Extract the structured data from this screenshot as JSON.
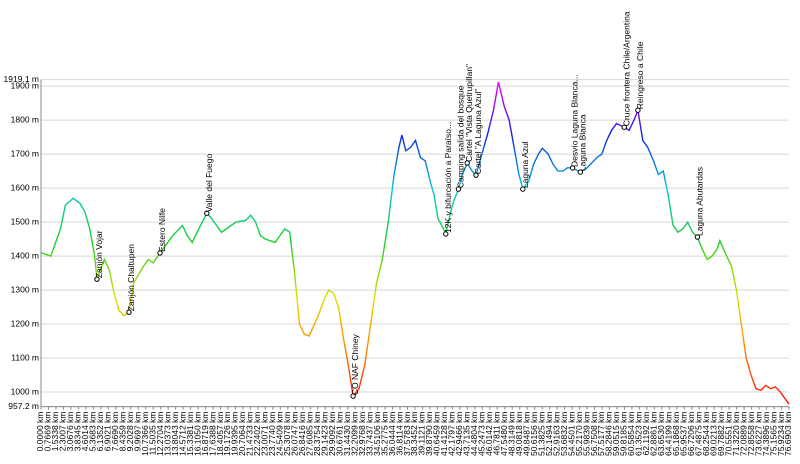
{
  "chart_data": {
    "type": "line",
    "ylim": [
      957.2,
      1919.1
    ],
    "yticks": [
      {
        "value": 957.2,
        "label": "957.2 m"
      },
      {
        "value": 1000,
        "label": "1000 m"
      },
      {
        "value": 1100,
        "label": "1100 m"
      },
      {
        "value": 1200,
        "label": "1200 m"
      },
      {
        "value": 1300,
        "label": "1300 m"
      },
      {
        "value": 1400,
        "label": "1400 m"
      },
      {
        "value": 1500,
        "label": "1500 m"
      },
      {
        "value": 1600,
        "label": "1600 m"
      },
      {
        "value": 1700,
        "label": "1700 m"
      },
      {
        "value": 1800,
        "label": "1800 m"
      },
      {
        "value": 1900,
        "label": "1900 m"
      },
      {
        "value": 1919.1,
        "label": "1919.1 m"
      }
    ],
    "xlim": [
      0,
      76.6903
    ],
    "xticks": [
      {
        "value": 0,
        "label": "0.0000 km"
      },
      {
        "value": 0.7669,
        "label": "0.7669 km"
      },
      {
        "value": 1.5338,
        "label": "1.5338 km"
      },
      {
        "value": 2.3007,
        "label": "2.3007 km"
      },
      {
        "value": 3.0676,
        "label": "3.0676 km"
      },
      {
        "value": 3.8345,
        "label": "3.8345 km"
      },
      {
        "value": 4.6014,
        "label": "4.6014 km"
      },
      {
        "value": 5.3683,
        "label": "5.3683 km"
      },
      {
        "value": 6.1352,
        "label": "6.1352 km"
      },
      {
        "value": 6.9021,
        "label": "6.9021 km"
      },
      {
        "value": 7.669,
        "label": "7.6690 km"
      },
      {
        "value": 8.4359,
        "label": "8.4359 km"
      },
      {
        "value": 9.2028,
        "label": "9.2028 km"
      },
      {
        "value": 9.9697,
        "label": "9.9697 km"
      },
      {
        "value": 10.7366,
        "label": "10.7366 km"
      },
      {
        "value": 11.5035,
        "label": "11.5035 km"
      },
      {
        "value": 12.2704,
        "label": "12.2704 km"
      },
      {
        "value": 13.0373,
        "label": "13.0373 km"
      },
      {
        "value": 13.8043,
        "label": "13.8043 km"
      },
      {
        "value": 14.5712,
        "label": "14.5712 km"
      },
      {
        "value": 15.3381,
        "label": "15.3381 km"
      },
      {
        "value": 16.105,
        "label": "16.1050 km"
      },
      {
        "value": 16.8719,
        "label": "16.8719 km"
      },
      {
        "value": 17.6388,
        "label": "17.6388 km"
      },
      {
        "value": 18.4057,
        "label": "18.4057 km"
      },
      {
        "value": 19.1726,
        "label": "19.1726 km"
      },
      {
        "value": 19.9395,
        "label": "19.9395 km"
      },
      {
        "value": 20.7064,
        "label": "20.7064 km"
      },
      {
        "value": 21.4733,
        "label": "21.4733 km"
      },
      {
        "value": 22.2402,
        "label": "22.2402 km"
      },
      {
        "value": 23.0071,
        "label": "23.0071 km"
      },
      {
        "value": 23.774,
        "label": "23.7740 km"
      },
      {
        "value": 24.5409,
        "label": "24.5409 km"
      },
      {
        "value": 25.3078,
        "label": "25.3078 km"
      },
      {
        "value": 26.0747,
        "label": "26.0747 km"
      },
      {
        "value": 26.8416,
        "label": "26.8416 km"
      },
      {
        "value": 27.6085,
        "label": "27.6085 km"
      },
      {
        "value": 28.3754,
        "label": "28.3754 km"
      },
      {
        "value": 29.1423,
        "label": "29.1423 km"
      },
      {
        "value": 29.9092,
        "label": "29.9092 km"
      },
      {
        "value": 30.6761,
        "label": "30.6761 km"
      },
      {
        "value": 31.443,
        "label": "31.4430 km"
      },
      {
        "value": 32.2099,
        "label": "32.2099 km"
      },
      {
        "value": 32.9768,
        "label": "32.9768 km"
      },
      {
        "value": 33.7437,
        "label": "33.7437 km"
      },
      {
        "value": 34.5106,
        "label": "34.5106 km"
      },
      {
        "value": 35.2775,
        "label": "35.2775 km"
      },
      {
        "value": 36.0444,
        "label": "36.0444 km"
      },
      {
        "value": 36.8114,
        "label": "36.8114 km"
      },
      {
        "value": 37.5783,
        "label": "37.5783 km"
      },
      {
        "value": 38.3452,
        "label": "38.3452 km"
      },
      {
        "value": 39.1121,
        "label": "39.1121 km"
      },
      {
        "value": 39.879,
        "label": "39.8790 km"
      },
      {
        "value": 40.6459,
        "label": "40.6459 km"
      },
      {
        "value": 41.4128,
        "label": "41.4128 km"
      },
      {
        "value": 42.1797,
        "label": "42.1797 km"
      },
      {
        "value": 42.9466,
        "label": "42.9466 km"
      },
      {
        "value": 43.7135,
        "label": "43.7135 km"
      },
      {
        "value": 44.4804,
        "label": "44.4804 km"
      },
      {
        "value": 45.2473,
        "label": "45.2473 km"
      },
      {
        "value": 46.0142,
        "label": "46.0142 km"
      },
      {
        "value": 46.7811,
        "label": "46.7811 km"
      },
      {
        "value": 47.548,
        "label": "47.5480 km"
      },
      {
        "value": 48.3149,
        "label": "48.3149 km"
      },
      {
        "value": 49.0818,
        "label": "49.0818 km"
      },
      {
        "value": 49.8487,
        "label": "49.8487 km"
      },
      {
        "value": 50.6156,
        "label": "50.6156 km"
      },
      {
        "value": 51.3825,
        "label": "51.3825 km"
      },
      {
        "value": 52.1494,
        "label": "52.1494 km"
      },
      {
        "value": 52.9163,
        "label": "52.9163 km"
      },
      {
        "value": 53.6832,
        "label": "53.6832 km"
      },
      {
        "value": 54.4501,
        "label": "54.4501 km"
      },
      {
        "value": 55.217,
        "label": "55.2170 km"
      },
      {
        "value": 55.9839,
        "label": "55.9839 km"
      },
      {
        "value": 56.7508,
        "label": "56.7508 km"
      },
      {
        "value": 57.5177,
        "label": "57.5177 km"
      },
      {
        "value": 58.2846,
        "label": "58.2846 km"
      },
      {
        "value": 59.0515,
        "label": "59.0515 km"
      },
      {
        "value": 59.8185,
        "label": "59.8185 km"
      },
      {
        "value": 60.5854,
        "label": "60.5854 km"
      },
      {
        "value": 61.3523,
        "label": "61.3523 km"
      },
      {
        "value": 62.1192,
        "label": "62.1192 km"
      },
      {
        "value": 62.8861,
        "label": "62.8861 km"
      },
      {
        "value": 63.653,
        "label": "63.6530 km"
      },
      {
        "value": 64.4199,
        "label": "64.4199 km"
      },
      {
        "value": 65.1868,
        "label": "65.1868 km"
      },
      {
        "value": 65.9537,
        "label": "65.9537 km"
      },
      {
        "value": 66.7206,
        "label": "66.7206 km"
      },
      {
        "value": 67.4875,
        "label": "67.4875 km"
      },
      {
        "value": 68.2544,
        "label": "68.2544 km"
      },
      {
        "value": 69.0213,
        "label": "69.0213 km"
      },
      {
        "value": 69.7882,
        "label": "69.7882 km"
      },
      {
        "value": 70.5551,
        "label": "70.5551 km"
      },
      {
        "value": 71.322,
        "label": "71.3220 km"
      },
      {
        "value": 72.0889,
        "label": "72.0889 km"
      },
      {
        "value": 72.8558,
        "label": "72.8558 km"
      },
      {
        "value": 73.6227,
        "label": "73.6227 km"
      },
      {
        "value": 74.3896,
        "label": "74.3896 km"
      },
      {
        "value": 75.1565,
        "label": "75.1565 km"
      },
      {
        "value": 75.9234,
        "label": "75.9234 km"
      },
      {
        "value": 76.6903,
        "label": "76.6903 km"
      }
    ],
    "grid": true,
    "color_scale": [
      "#ff0000",
      "#ff8000",
      "#e0e000",
      "#20d020",
      "#00c8d8",
      "#1020e0",
      "#ff00ff"
    ],
    "x": [
      0,
      1,
      1.5,
      2,
      2.5,
      3.3,
      4,
      4.5,
      5,
      5.5,
      5.74,
      6.5,
      7,
      7.5,
      8,
      8.5,
      9.02,
      9.5,
      10.5,
      11,
      11.5,
      12.2,
      13,
      13.5,
      14.5,
      15,
      15.5,
      16,
      17,
      17.5,
      18.5,
      19,
      20,
      21,
      21.5,
      22,
      22.5,
      23,
      24,
      25,
      25.5,
      26,
      26.5,
      27,
      27.5,
      28.5,
      29,
      29.5,
      30,
      30.5,
      31,
      31.5,
      32,
      32.6,
      33.2,
      33.8,
      34.4,
      35,
      35.6,
      36.2,
      36.7,
      37,
      37.4,
      37.9,
      38.4,
      38.9,
      39.4,
      39.9,
      40.3,
      40.7,
      41.1,
      41.5,
      42,
      42.3,
      42.8,
      43.2,
      43.7,
      44.2,
      44.6,
      45.2,
      45.8,
      46.4,
      46.9,
      47.5,
      48,
      48.5,
      49,
      49.4,
      50,
      50.5,
      51,
      51.4,
      52,
      52.5,
      53,
      53.5,
      54,
      54.5,
      55.3,
      56,
      57,
      57.5,
      58,
      58.5,
      59,
      59.8,
      60.3,
      60.8,
      61.2,
      61.7,
      62.2,
      62.8,
      63.3,
      63.8,
      64.3,
      64.8,
      65.3,
      65.8,
      66.3,
      66.8,
      67.3,
      67.8,
      68.3,
      68.8,
      69.3,
      69.6,
      70.3,
      70.8,
      71.3,
      71.8,
      72.3,
      72.8,
      73.3,
      73.8,
      74.3,
      74.8,
      75.3,
      75.8,
      76.3,
      76.6903
    ],
    "values": [
      1410,
      1400,
      1440,
      1480,
      1550,
      1570,
      1555,
      1530,
      1480,
      1400,
      1332,
      1390,
      1360,
      1290,
      1240,
      1225,
      1235,
      1320,
      1370,
      1390,
      1380,
      1409,
      1440,
      1460,
      1490,
      1460,
      1440,
      1470,
      1526,
      1510,
      1470,
      1480,
      1500,
      1505,
      1520,
      1500,
      1460,
      1450,
      1440,
      1480,
      1470,
      1350,
      1200,
      1170,
      1165,
      1230,
      1270,
      1300,
      1290,
      1250,
      1160,
      1080,
      988,
      1010,
      1080,
      1200,
      1320,
      1390,
      1500,
      1640,
      1720,
      1756,
      1710,
      1720,
      1740,
      1690,
      1680,
      1620,
      1580,
      1510,
      1490,
      1465,
      1530,
      1560,
      1597,
      1640,
      1674,
      1650,
      1638,
      1700,
      1760,
      1830,
      1912,
      1840,
      1800,
      1720,
      1640,
      1597,
      1620,
      1670,
      1700,
      1717,
      1700,
      1670,
      1650,
      1650,
      1660,
      1659,
      1647,
      1660,
      1690,
      1700,
      1740,
      1770,
      1790,
      1779,
      1770,
      1800,
      1829,
      1740,
      1720,
      1680,
      1640,
      1650,
      1580,
      1490,
      1470,
      1480,
      1500,
      1470,
      1456,
      1420,
      1390,
      1400,
      1420,
      1445,
      1400,
      1370,
      1300,
      1200,
      1100,
      1050,
      1010,
      1005,
      1020,
      1010,
      1015,
      1000,
      980,
      965
    ],
    "annotations": [
      {
        "label": "Zanjón Vojar",
        "x": 5.74,
        "y": 1332
      },
      {
        "label": "Zanjón Chaltupen",
        "x": 9.02,
        "y": 1235
      },
      {
        "label": "Estero Nilfe",
        "x": 12.2,
        "y": 1409
      },
      {
        "label": "Valle del Fuego",
        "x": 17,
        "y": 1526
      },
      {
        "label": "CO NAF Chiney",
        "x": 32,
        "y": 988
      },
      {
        "label": "12K y bifurcación a Paraíso...",
        "x": 41.5,
        "y": 1465
      },
      {
        "label": "Camping salida del bosque",
        "x": 42.8,
        "y": 1597
      },
      {
        "label": "Cartel \"Vista Quetrupillan\"",
        "x": 43.7,
        "y": 1674
      },
      {
        "label": "Cartel \"A Laguna Azul\"",
        "x": 44.6,
        "y": 1638
      },
      {
        "label": "Laguna Azul",
        "x": 49.4,
        "y": 1597
      },
      {
        "label": "Desvío Laguna Blanca...",
        "x": 54.5,
        "y": 1659
      },
      {
        "label": "Laguna Blanca",
        "x": 55.3,
        "y": 1647
      },
      {
        "label": "Cruce frontera Chile/Argentina",
        "x": 59.8,
        "y": 1779
      },
      {
        "label": "Reingreso a Chile",
        "x": 61.2,
        "y": 1829
      },
      {
        "label": "Laguna Abutardas",
        "x": 67.3,
        "y": 1456
      }
    ]
  }
}
